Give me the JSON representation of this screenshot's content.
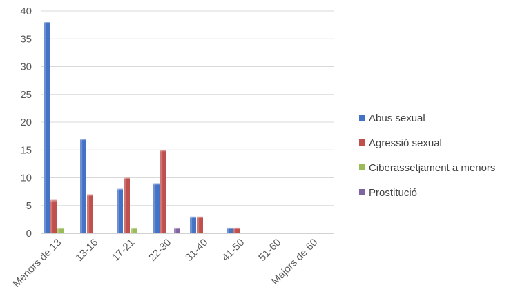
{
  "chart_data": {
    "type": "bar",
    "title": "",
    "xlabel": "",
    "ylabel": "",
    "categories": [
      "Menors de 13",
      "13-16",
      "17-21",
      "22-30",
      "31-40",
      "41-50",
      "51-60",
      "Majors de 60"
    ],
    "series": [
      {
        "name": "Abus sexual",
        "values": [
          38,
          17,
          8,
          9,
          3,
          1,
          0,
          0
        ],
        "color": "#4472C4"
      },
      {
        "name": "Agressió sexual",
        "values": [
          6,
          7,
          10,
          15,
          3,
          1,
          0,
          0
        ],
        "color": "#C0504D"
      },
      {
        "name": "Ciberassetjament a menors",
        "values": [
          1,
          0,
          1,
          0,
          0,
          0,
          0,
          0
        ],
        "color": "#9BBB59"
      },
      {
        "name": "Prostitució",
        "values": [
          0,
          0,
          0,
          1,
          0,
          0,
          0,
          0
        ],
        "color": "#8064A2"
      }
    ],
    "yticks": [
      "0",
      "5",
      "10",
      "15",
      "20",
      "25",
      "30",
      "35",
      "40"
    ],
    "ylim": [
      0,
      40
    ],
    "grid": true,
    "legend_position": "right"
  }
}
